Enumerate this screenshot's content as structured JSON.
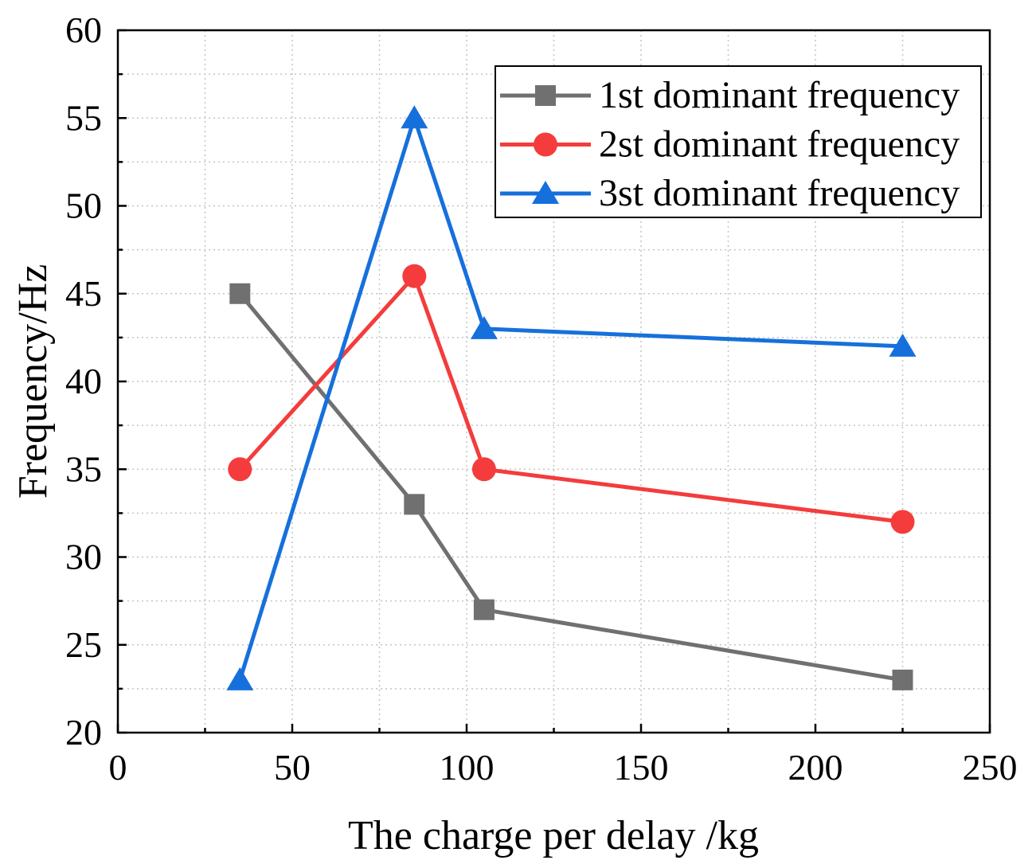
{
  "chart_data": {
    "type": "line",
    "title": "",
    "xlabel": "The charge per delay /kg",
    "ylabel": "Frequency/Hz",
    "xlim": [
      0,
      250
    ],
    "ylim": [
      20,
      60
    ],
    "xticks": [
      0,
      50,
      100,
      150,
      200,
      250
    ],
    "yticks": [
      20,
      25,
      30,
      35,
      40,
      45,
      50,
      55,
      60
    ],
    "x_minor_step": 25,
    "y_minor_step": 2.5,
    "grid": true,
    "legend": "top-right",
    "x": [
      35,
      85,
      105,
      225
    ],
    "series": [
      {
        "name": "1st dominant frequency",
        "color": "#707070",
        "marker": "square",
        "values": [
          45,
          33,
          27,
          23
        ]
      },
      {
        "name": "2st dominant frequency",
        "color": "#f43c3c",
        "marker": "circle",
        "values": [
          35,
          46,
          35,
          32
        ]
      },
      {
        "name": "3st dominant frequency",
        "color": "#1670dc",
        "marker": "triangle",
        "values": [
          23,
          55,
          43,
          42
        ]
      }
    ]
  }
}
